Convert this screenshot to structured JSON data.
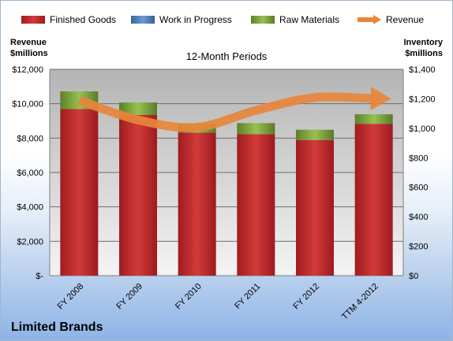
{
  "chart_data": {
    "type": "bar",
    "stacked": true,
    "subtitle": "12-Month Periods",
    "footer_title": "Limited Brands",
    "categories": [
      "FY 2008",
      "FY 2009",
      "FY 2010",
      "FY 2011",
      "FY 2012",
      "TTM 4-2012"
    ],
    "left_axis": {
      "label_line1": "Revenue",
      "label_line2": "$millions",
      "ylim": [
        0,
        12000
      ],
      "ticks": [
        0,
        2000,
        4000,
        6000,
        8000,
        10000,
        12000
      ],
      "tick_labels": [
        "$-",
        "$2,000",
        "$4,000",
        "$6,000",
        "$8,000",
        "$10,000",
        "$12,000"
      ]
    },
    "right_axis": {
      "label_line1": "Inventory",
      "label_line2": "$millions",
      "ylim": [
        0,
        1400
      ],
      "ticks": [
        0,
        200,
        400,
        600,
        800,
        1000,
        1200,
        1400
      ],
      "tick_labels": [
        "$0",
        "$200",
        "$400",
        "$600",
        "$800",
        "$1,000",
        "$1,200",
        "$1,400"
      ]
    },
    "series": [
      {
        "name": "Finished Goods",
        "axis": "right",
        "color": "#c0272d",
        "values": [
          1130,
          1090,
          970,
          960,
          920,
          1030
        ]
      },
      {
        "name": "Work in Progress",
        "axis": "right",
        "color": "#4f81bd",
        "values": [
          0,
          0,
          0,
          0,
          0,
          0
        ]
      },
      {
        "name": "Raw Materials",
        "axis": "right",
        "color": "#7aa23a",
        "values": [
          120,
          85,
          60,
          75,
          70,
          65
        ]
      },
      {
        "name": "Revenue",
        "axis": "left",
        "type": "line",
        "color": "#e8853a",
        "values": [
          10200,
          9050,
          8630,
          9610,
          10360,
          10300
        ]
      }
    ],
    "grid": true,
    "legend_position": "top"
  }
}
